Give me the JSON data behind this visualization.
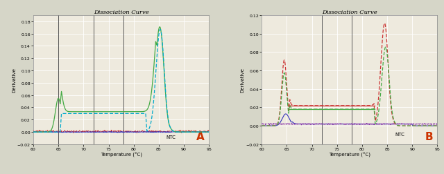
{
  "title": "Dissociation Curve",
  "xlabel": "Temperature (°C)",
  "ylabel": "Derivative",
  "xlim": [
    60,
    95
  ],
  "ylim_A": [
    -0.02,
    0.19
  ],
  "ylim_B": [
    -0.02,
    0.12
  ],
  "yticks_A": [
    -0.02,
    0.0,
    0.02,
    0.04,
    0.06,
    0.08,
    0.1,
    0.12,
    0.14,
    0.16,
    0.18
  ],
  "yticks_B": [
    -0.02,
    0.0,
    0.02,
    0.04,
    0.06,
    0.08,
    0.1,
    0.12
  ],
  "xticks": [
    60,
    65,
    70,
    75,
    80,
    85,
    90,
    95
  ],
  "vlines_A": [
    65,
    72,
    78
  ],
  "vlines_B": [
    72,
    78
  ],
  "bg_color": "#d6d6c8",
  "plot_bg": "#eeeade",
  "grid_color": "#ffffff",
  "label_A": "A",
  "label_B": "B",
  "ntc_label": "NTC",
  "title_font": "serif"
}
